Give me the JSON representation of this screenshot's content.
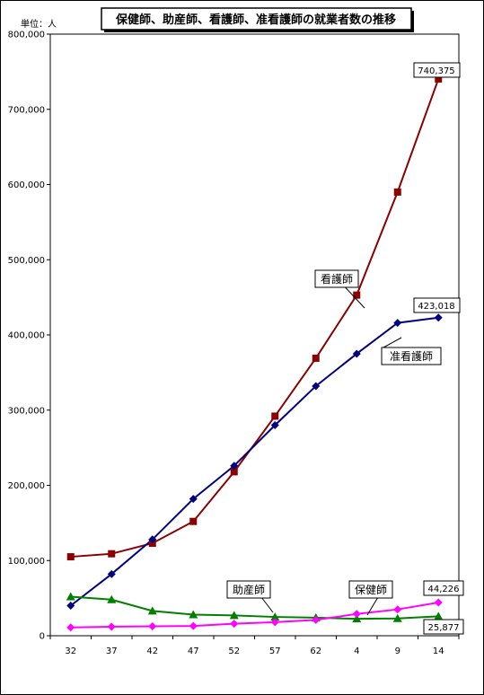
{
  "chart_data": {
    "type": "line",
    "title": "保健師、助産師、看護師、准看護師の就業者数の推移",
    "unit_label": "単位：人",
    "categories": [
      "32",
      "37",
      "42",
      "47",
      "52",
      "57",
      "62",
      "4",
      "9",
      "14"
    ],
    "ylim": [
      0,
      800000
    ],
    "yticks": [
      "0",
      "100,000",
      "200,000",
      "300,000",
      "400,000",
      "500,000",
      "600,000",
      "700,000",
      "800,000"
    ],
    "grid": false,
    "series": [
      {
        "name": "看護師",
        "color": "#8b0000",
        "marker": "square",
        "values": [
          105000,
          109000,
          123000,
          152000,
          218000,
          292000,
          369000,
          453000,
          590000,
          740375
        ]
      },
      {
        "name": "准看護師",
        "color": "#000080",
        "marker": "diamond",
        "values": [
          40000,
          82000,
          128000,
          182000,
          226000,
          280000,
          332000,
          375000,
          416000,
          423018
        ]
      },
      {
        "name": "助産師",
        "color": "#008000",
        "marker": "triangle",
        "values": [
          52000,
          48000,
          33000,
          28000,
          27000,
          25000,
          24000,
          22500,
          23000,
          25877
        ]
      },
      {
        "name": "保健師",
        "color": "#ff00ff",
        "marker": "diamond",
        "values": [
          11000,
          12000,
          12500,
          13000,
          16000,
          18000,
          21000,
          29000,
          35000,
          44226
        ]
      }
    ],
    "data_labels": [
      "740,375",
      "423,018",
      "44,226",
      "25,877"
    ]
  }
}
